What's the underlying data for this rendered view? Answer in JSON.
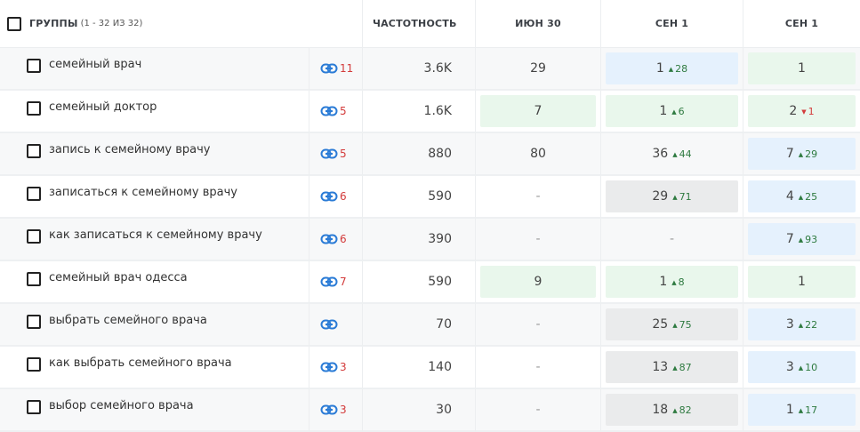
{
  "header": {
    "groups_label": "ГРУППЫ",
    "groups_count": "(1 - 32 ИЗ 32)",
    "col_frequency": "ЧАСТОТНОСТЬ",
    "col_jun30": "ИЮН 30",
    "col_sep1_a": "СЕН 1",
    "col_sep1_b": "СЕН 1"
  },
  "colors": {
    "blue_cell": "#e5f1fd",
    "green_cell": "#e9f7ec",
    "gray_cell": "#eaebec",
    "up_arrow": "#2e7a40",
    "down_arrow": "#d33b3b",
    "link_icon": "#2a7bd6",
    "link_count": "#d33b3b"
  },
  "icons": {
    "link": "link-icon"
  },
  "rows": [
    {
      "keyword": "семейный врач",
      "links": "11",
      "freq": "3.6K",
      "jun": {
        "value": "29",
        "bg": "none"
      },
      "sep_a": {
        "value": "1",
        "delta": "28",
        "dir": "up",
        "bg": "blue"
      },
      "sep_b": {
        "value": "1",
        "delta": "",
        "dir": "",
        "bg": "green"
      }
    },
    {
      "keyword": "семейный доктор",
      "links": "5",
      "freq": "1.6K",
      "jun": {
        "value": "7",
        "bg": "green"
      },
      "sep_a": {
        "value": "1",
        "delta": "6",
        "dir": "up",
        "bg": "green"
      },
      "sep_b": {
        "value": "2",
        "delta": "1",
        "dir": "down",
        "bg": "green"
      }
    },
    {
      "keyword": "запись к семейному врачу",
      "links": "5",
      "freq": "880",
      "jun": {
        "value": "80",
        "bg": "none"
      },
      "sep_a": {
        "value": "36",
        "delta": "44",
        "dir": "up",
        "bg": "none"
      },
      "sep_b": {
        "value": "7",
        "delta": "29",
        "dir": "up",
        "bg": "blue"
      }
    },
    {
      "keyword": "записаться к семейному врачу",
      "links": "6",
      "freq": "590",
      "jun": {
        "value": "-",
        "bg": "none"
      },
      "sep_a": {
        "value": "29",
        "delta": "71",
        "dir": "up",
        "bg": "gray"
      },
      "sep_b": {
        "value": "4",
        "delta": "25",
        "dir": "up",
        "bg": "blue"
      }
    },
    {
      "keyword": "как записаться к семейному врачу",
      "links": "6",
      "freq": "390",
      "jun": {
        "value": "-",
        "bg": "none"
      },
      "sep_a": {
        "value": "-",
        "delta": "",
        "dir": "",
        "bg": "none"
      },
      "sep_b": {
        "value": "7",
        "delta": "93",
        "dir": "up",
        "bg": "blue"
      }
    },
    {
      "keyword": "семейный врач одесса",
      "links": "7",
      "freq": "590",
      "jun": {
        "value": "9",
        "bg": "green"
      },
      "sep_a": {
        "value": "1",
        "delta": "8",
        "dir": "up",
        "bg": "green"
      },
      "sep_b": {
        "value": "1",
        "delta": "",
        "dir": "",
        "bg": "green"
      }
    },
    {
      "keyword": "выбрать семейного врача",
      "links": "",
      "freq": "70",
      "jun": {
        "value": "-",
        "bg": "none"
      },
      "sep_a": {
        "value": "25",
        "delta": "75",
        "dir": "up",
        "bg": "gray"
      },
      "sep_b": {
        "value": "3",
        "delta": "22",
        "dir": "up",
        "bg": "blue"
      }
    },
    {
      "keyword": "как выбрать семейного врача",
      "links": "3",
      "freq": "140",
      "jun": {
        "value": "-",
        "bg": "none"
      },
      "sep_a": {
        "value": "13",
        "delta": "87",
        "dir": "up",
        "bg": "gray"
      },
      "sep_b": {
        "value": "3",
        "delta": "10",
        "dir": "up",
        "bg": "blue"
      }
    },
    {
      "keyword": "выбор семейного врача",
      "links": "3",
      "freq": "30",
      "jun": {
        "value": "-",
        "bg": "none"
      },
      "sep_a": {
        "value": "18",
        "delta": "82",
        "dir": "up",
        "bg": "gray"
      },
      "sep_b": {
        "value": "1",
        "delta": "17",
        "dir": "up",
        "bg": "blue"
      }
    }
  ]
}
